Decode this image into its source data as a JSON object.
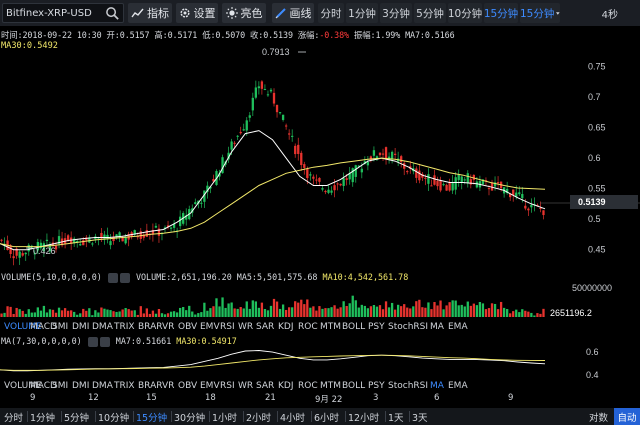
{
  "toolbar": {
    "symbol": "Bitfinex-XRP-USD",
    "indicators_label": "指标",
    "settings_label": "设置",
    "theme_label": "亮色",
    "draw_label": "画线",
    "intervals": [
      "分时",
      "1分钟",
      "3分钟",
      "5分钟",
      "10分钟",
      "15分钟",
      "15分钟"
    ],
    "active_interval_index": 5,
    "countdown": "4秒"
  },
  "info": {
    "time": "时间:2018-09-22 10:30",
    "open": "开:0.5157",
    "high": "高:0.5171",
    "low": "低:0.5070",
    "close": "收:0.5139",
    "change_label": "涨幅:",
    "change": "-0.38%",
    "amplitude": "振幅:1.99%",
    "ma7": "MA7:0.5166",
    "ma30": "MA30:0.5492"
  },
  "price_axis": {
    "ticks": [
      "0.75",
      "0.7",
      "0.65",
      "0.6",
      "0.55",
      "0.5",
      "0.45"
    ],
    "current_price": "0.5139",
    "high_marker": "0.7913",
    "low_marker": "0.426"
  },
  "volume": {
    "label": "VOLUME(5,10,0,0,0,0)",
    "value": "VOLUME:2,651,196.20",
    "ma5": "MA5:5,501,575.68",
    "ma10": "MA10:4,542,561.78",
    "axis_top": "50000000",
    "current": "2651196.2"
  },
  "indicator_tabs": [
    "VOLUME",
    "MACD",
    "SMI",
    "DMI",
    "DMA",
    "TRIX",
    "BRAR",
    "VR",
    "OBV",
    "EMV",
    "RSI",
    "WR",
    "SAR",
    "KDJ",
    "ROC",
    "MTM",
    "BOLL",
    "PSY",
    "StochRSI",
    "MA",
    "EMA"
  ],
  "ma_panel": {
    "label": "MA(7,30,0,0,0,0)",
    "ma7": "MA7:0.51661",
    "ma30": "MA30:0.54917",
    "ticks": [
      "0.6",
      "0.4"
    ]
  },
  "time_axis": [
    "9",
    "12",
    "15",
    "18",
    "21",
    "9月 22",
    "3",
    "6",
    "9"
  ],
  "bottom_bar": {
    "intervals": [
      "分时",
      "1分钟",
      "5分钟",
      "10分钟",
      "15分钟",
      "30分钟",
      "1小时",
      "2小时",
      "4小时",
      "6小时",
      "12小时",
      "1天",
      "3天"
    ],
    "active_index": 4,
    "log_label": "对数",
    "auto_label": "自动"
  },
  "colors": {
    "up": "#1fbf5c",
    "down": "#e8332e",
    "ma7": "#ffffff",
    "ma30": "#f2e86a",
    "accent": "#3d8bff"
  },
  "chart_data": {
    "type": "candlestick",
    "x": [
      "9",
      "12",
      "15",
      "18",
      "21",
      "9月 22",
      "3",
      "6",
      "9"
    ],
    "ylim": [
      0.42,
      0.79
    ],
    "close_path": [
      0.465,
      0.44,
      0.45,
      0.455,
      0.46,
      0.47,
      0.465,
      0.47,
      0.465,
      0.47,
      0.475,
      0.48,
      0.48,
      0.49,
      0.52,
      0.54,
      0.58,
      0.62,
      0.66,
      0.72,
      0.7,
      0.65,
      0.6,
      0.56,
      0.55,
      0.56,
      0.575,
      0.6,
      0.61,
      0.6,
      0.58,
      0.57,
      0.56,
      0.55,
      0.57,
      0.56,
      0.555,
      0.55,
      0.54,
      0.52,
      0.515
    ],
    "ma7_path": [
      0.46,
      0.45,
      0.45,
      0.455,
      0.46,
      0.465,
      0.468,
      0.47,
      0.47,
      0.472,
      0.476,
      0.48,
      0.483,
      0.495,
      0.51,
      0.54,
      0.57,
      0.61,
      0.64,
      0.645,
      0.63,
      0.6,
      0.57,
      0.555,
      0.555,
      0.565,
      0.58,
      0.595,
      0.6,
      0.595,
      0.585,
      0.572,
      0.565,
      0.56,
      0.56,
      0.558,
      0.553,
      0.547,
      0.535,
      0.525,
      0.517
    ],
    "ma30_path": [
      0.46,
      0.455,
      0.455,
      0.455,
      0.457,
      0.46,
      0.463,
      0.466,
      0.468,
      0.47,
      0.472,
      0.475,
      0.477,
      0.48,
      0.485,
      0.495,
      0.51,
      0.525,
      0.54,
      0.555,
      0.565,
      0.575,
      0.58,
      0.585,
      0.588,
      0.592,
      0.595,
      0.598,
      0.6,
      0.598,
      0.594,
      0.588,
      0.582,
      0.576,
      0.572,
      0.566,
      0.56,
      0.555,
      0.551,
      0.55,
      0.549
    ]
  }
}
